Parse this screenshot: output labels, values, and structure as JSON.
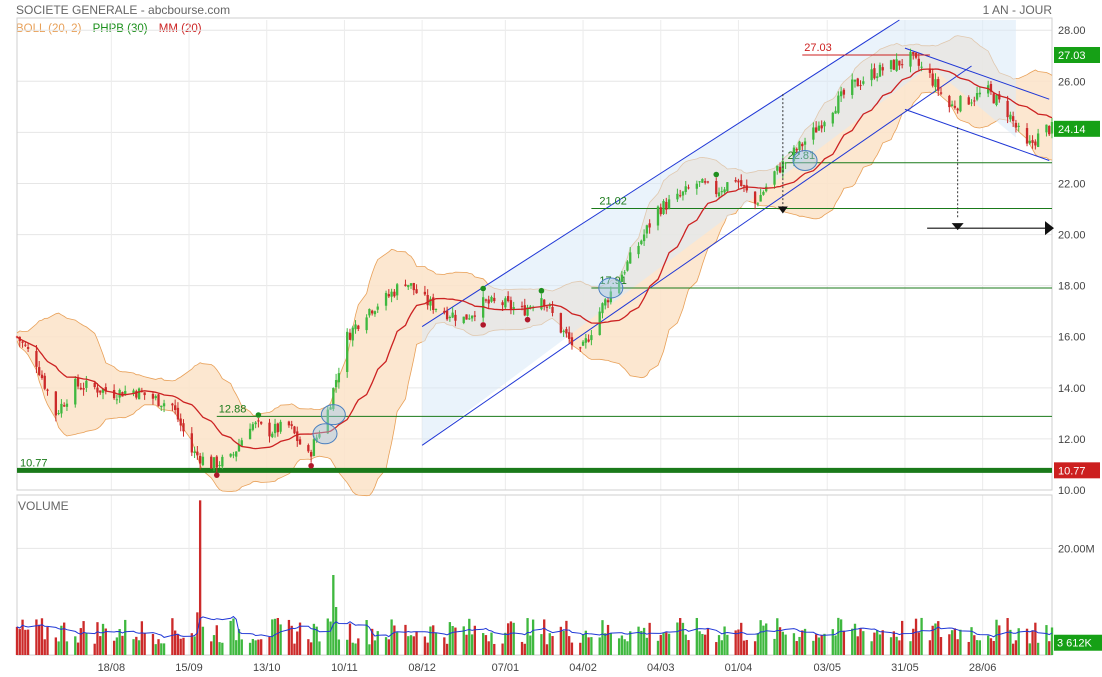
{
  "header": {
    "title": "SOCIETE GENERALE - abcbourse.com",
    "period": "1 AN - JOUR"
  },
  "legend": [
    {
      "label": "BOLL (20, 2)",
      "color": "#e8a058"
    },
    {
      "label": "PHPB (30)",
      "color": "#1a8f1a"
    },
    {
      "label": "MM (20)",
      "color": "#cc2222"
    }
  ],
  "colors": {
    "up": "#3fb83f",
    "down": "#cc2a2a",
    "ma": "#cc2222",
    "boll_fill": "#fbe3c8",
    "boll_line": "#e8a058",
    "channel_fill": "#d8eaf8",
    "channel_line": "#1f37d6",
    "support": "#1a7a1a",
    "accent_red": "#cc1f1f",
    "accent_green": "#16a016"
  },
  "chart_data": [
    {
      "type": "candlestick",
      "title": "",
      "x_tick_labels": [
        "18/08",
        "15/09",
        "13/10",
        "10/11",
        "08/12",
        "07/01",
        "04/02",
        "04/03",
        "01/04",
        "03/05",
        "31/05",
        "28/06"
      ],
      "y_tick_labels": [
        "10.00",
        "12.00",
        "14.00",
        "16.00",
        "18.00",
        "20.00",
        "22.00",
        "24.00",
        "26.00",
        "28.00"
      ],
      "ylim": [
        10,
        28.4
      ],
      "grid": true,
      "last_price": "24.14",
      "price_path": [
        [
          "2024-07-15",
          16.0
        ],
        [
          "2024-07-22",
          15.0
        ],
        [
          "2024-07-29",
          13.0
        ],
        [
          "2024-08-05",
          14.1
        ],
        [
          "2024-08-12",
          14.0
        ],
        [
          "2024-08-19",
          13.8
        ],
        [
          "2024-08-26",
          13.9
        ],
        [
          "2024-09-02",
          13.6
        ],
        [
          "2024-09-09",
          13.3
        ],
        [
          "2024-09-16",
          11.5
        ],
        [
          "2024-09-23",
          11.0
        ],
        [
          "2024-09-30",
          11.2
        ],
        [
          "2024-10-07",
          12.6
        ],
        [
          "2024-10-14",
          12.3
        ],
        [
          "2024-10-21",
          12.5
        ],
        [
          "2024-10-28",
          11.3
        ],
        [
          "2024-11-04",
          13.1
        ],
        [
          "2024-11-11",
          16.0
        ],
        [
          "2024-11-18",
          17.0
        ],
        [
          "2024-11-25",
          17.5
        ],
        [
          "2024-12-02",
          18.2
        ],
        [
          "2024-12-09",
          17.4
        ],
        [
          "2024-12-16",
          17.0
        ],
        [
          "2024-12-23",
          16.7
        ],
        [
          "2024-12-30",
          17.3
        ],
        [
          "2025-01-06",
          17.3
        ],
        [
          "2025-01-13",
          17.0
        ],
        [
          "2025-01-20",
          17.6
        ],
        [
          "2025-01-27",
          16.3
        ],
        [
          "2025-02-03",
          15.3
        ],
        [
          "2025-02-10",
          17.0
        ],
        [
          "2025-02-17",
          18.3
        ],
        [
          "2025-02-24",
          19.6
        ],
        [
          "2025-03-03",
          21.0
        ],
        [
          "2025-03-10",
          21.4
        ],
        [
          "2025-03-17",
          22.0
        ],
        [
          "2025-03-24",
          21.7
        ],
        [
          "2025-03-31",
          22.2
        ],
        [
          "2025-04-07",
          21.2
        ],
        [
          "2025-04-14",
          22.4
        ],
        [
          "2025-04-21",
          23.2
        ],
        [
          "2025-04-28",
          24.0
        ],
        [
          "2025-05-05",
          25.0
        ],
        [
          "2025-05-12",
          25.8
        ],
        [
          "2025-05-19",
          26.3
        ],
        [
          "2025-05-26",
          26.6
        ],
        [
          "2025-06-02",
          26.9
        ],
        [
          "2025-06-09",
          26.2
        ],
        [
          "2025-06-16",
          25.0
        ],
        [
          "2025-06-23",
          25.3
        ],
        [
          "2025-06-30",
          25.6
        ],
        [
          "2025-07-07",
          24.8
        ],
        [
          "2025-07-14",
          23.4
        ],
        [
          "2025-07-21",
          24.14
        ]
      ],
      "horizontal_levels": [
        {
          "label": "10.77",
          "value": 10.77,
          "tag": "10.77"
        },
        {
          "label": "12.88",
          "value": 12.88
        },
        {
          "label": "17.91",
          "value": 17.91
        },
        {
          "label": "21.02",
          "value": 21.02
        },
        {
          "label": "22.81",
          "value": 22.81
        },
        {
          "label": "27.03",
          "value": 27.03,
          "tag": "27.03"
        }
      ],
      "projection_target": 20.25
    },
    {
      "type": "bar",
      "title": "VOLUME",
      "y_tick_labels": [
        "20.00M"
      ],
      "last_volume": "3 612K",
      "volume_events": [
        {
          "date": "2024-09-19",
          "value_m": 29
        },
        {
          "date": "2024-11-06",
          "value_m": 15
        },
        {
          "date": "2024-09-18",
          "value_m": 8
        },
        {
          "date": "2024-11-07",
          "value_m": 9
        }
      ]
    }
  ]
}
